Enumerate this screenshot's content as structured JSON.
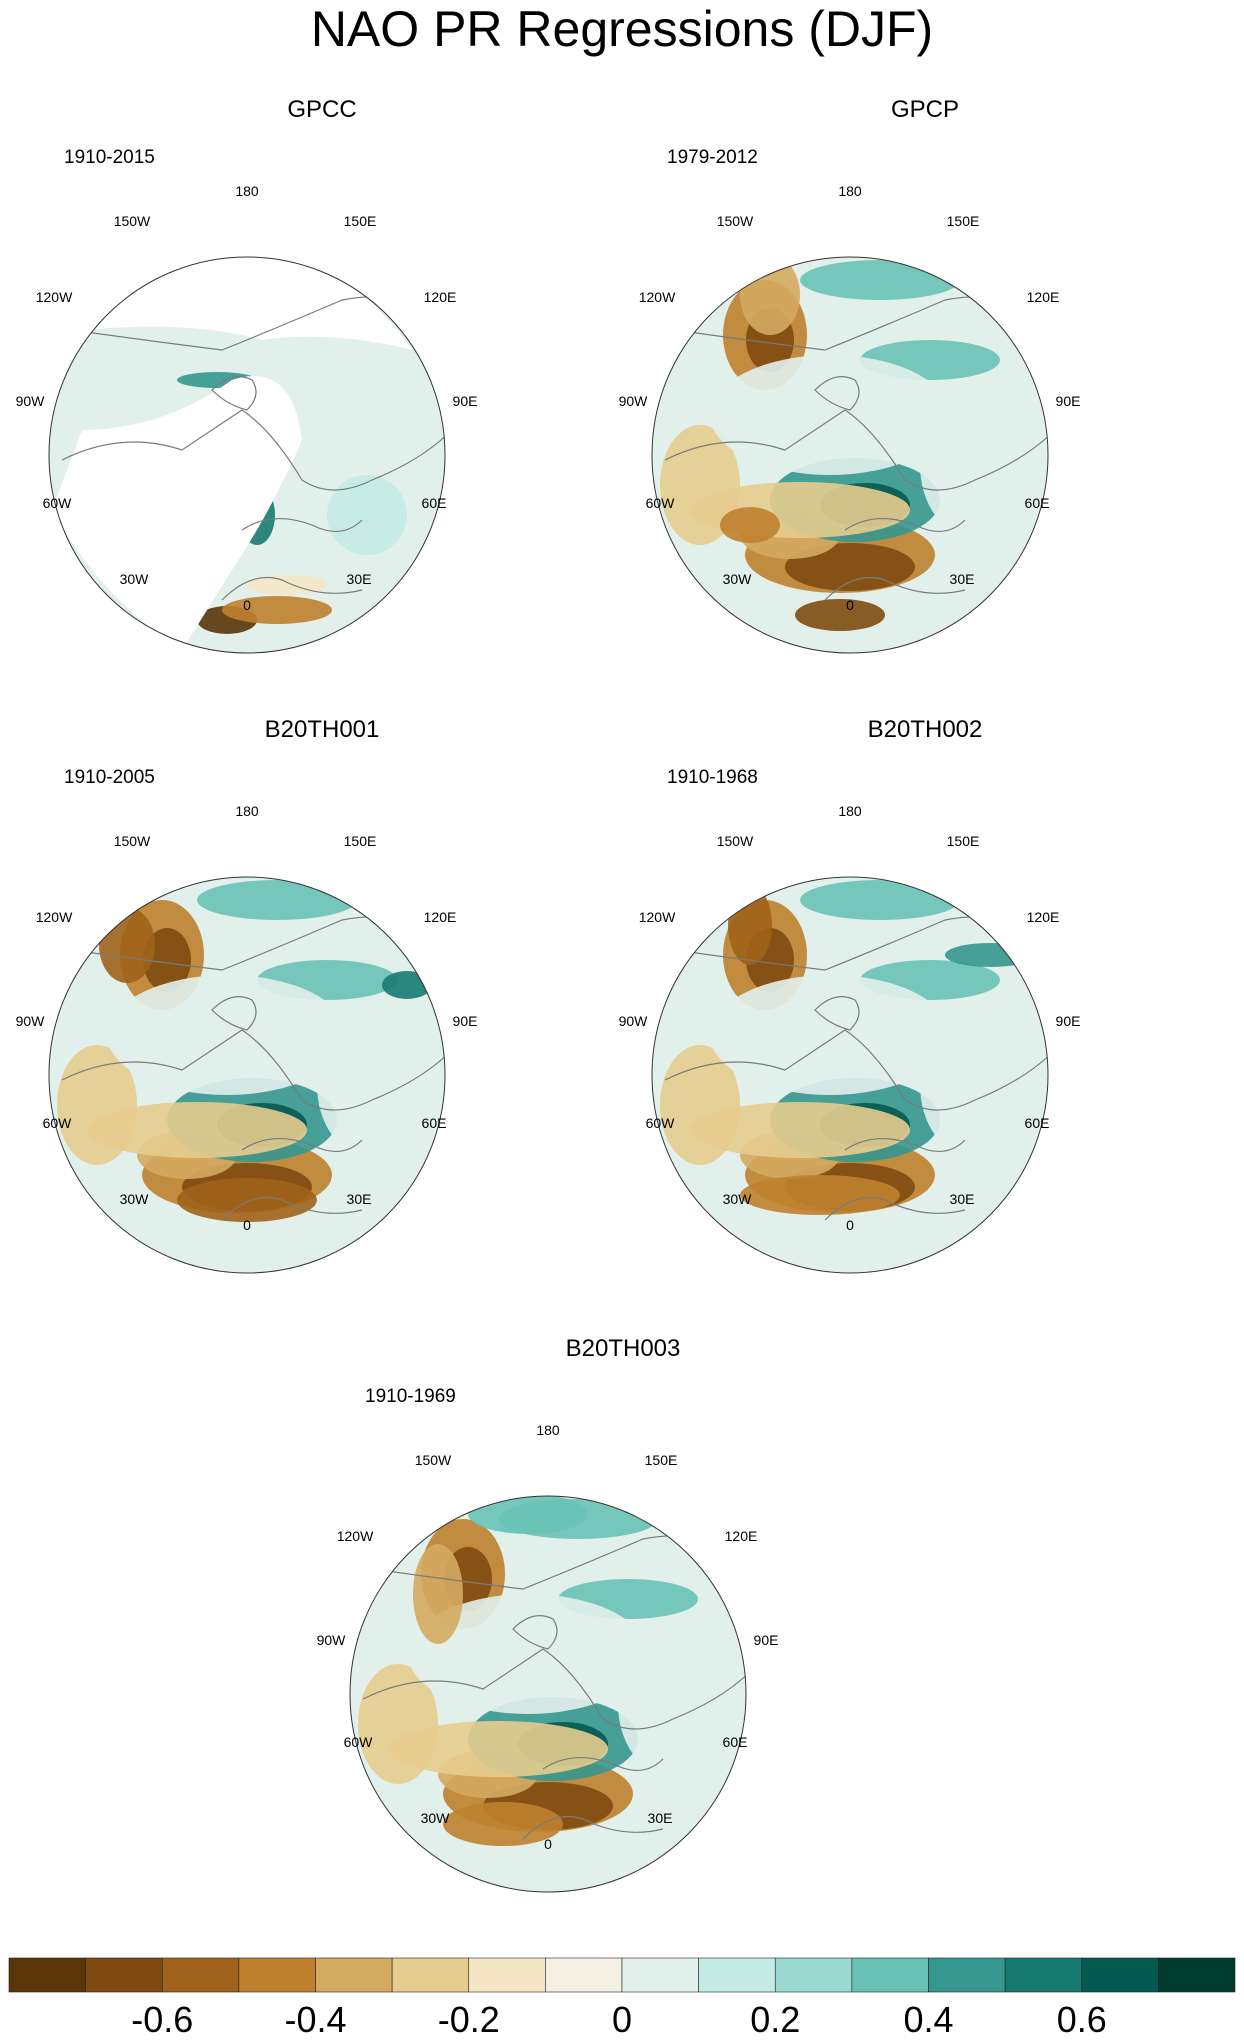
{
  "title": "NAO PR Regressions (DJF)",
  "colors": {
    "palette": [
      "#5a3508",
      "#7f4a0f",
      "#a0621a",
      "#bf812d",
      "#d4aa60",
      "#e6cc8e",
      "#f5e7c6",
      "#f4f0e4",
      "#e2f0ec",
      "#c4ebe4",
      "#99dbd1",
      "#6ac2b6",
      "#35978f",
      "#177a71",
      "#045a50",
      "#003c30"
    ],
    "land_outline": "#7a7a7a",
    "missing": "#ffffff"
  },
  "map": {
    "projection": "polar stereographic, north pole",
    "lon_labels": [
      "180",
      "150E",
      "120E",
      "90E",
      "60E",
      "30E",
      "0",
      "30W",
      "60W",
      "90W",
      "120W",
      "150W"
    ]
  },
  "panels": [
    {
      "title": "GPCC",
      "period": "1910-2015",
      "masked_land_only": true
    },
    {
      "title": "GPCP",
      "period": "1979-2012",
      "masked_land_only": false
    },
    {
      "title": "B20TH001",
      "period": "1910-2005",
      "masked_land_only": false
    },
    {
      "title": "B20TH002",
      "period": "1910-1968",
      "masked_land_only": false
    },
    {
      "title": "B20TH003",
      "period": "1910-1969",
      "masked_land_only": false
    }
  ],
  "colorbar": {
    "levels": [
      -0.7,
      -0.6,
      -0.5,
      -0.4,
      -0.3,
      -0.2,
      -0.1,
      0,
      0.1,
      0.2,
      0.3,
      0.4,
      0.5,
      0.6,
      0.7
    ],
    "labels": [
      "-0.6",
      "-0.4",
      "-0.2",
      "0",
      "0.2",
      "0.4",
      "0.6"
    ]
  }
}
